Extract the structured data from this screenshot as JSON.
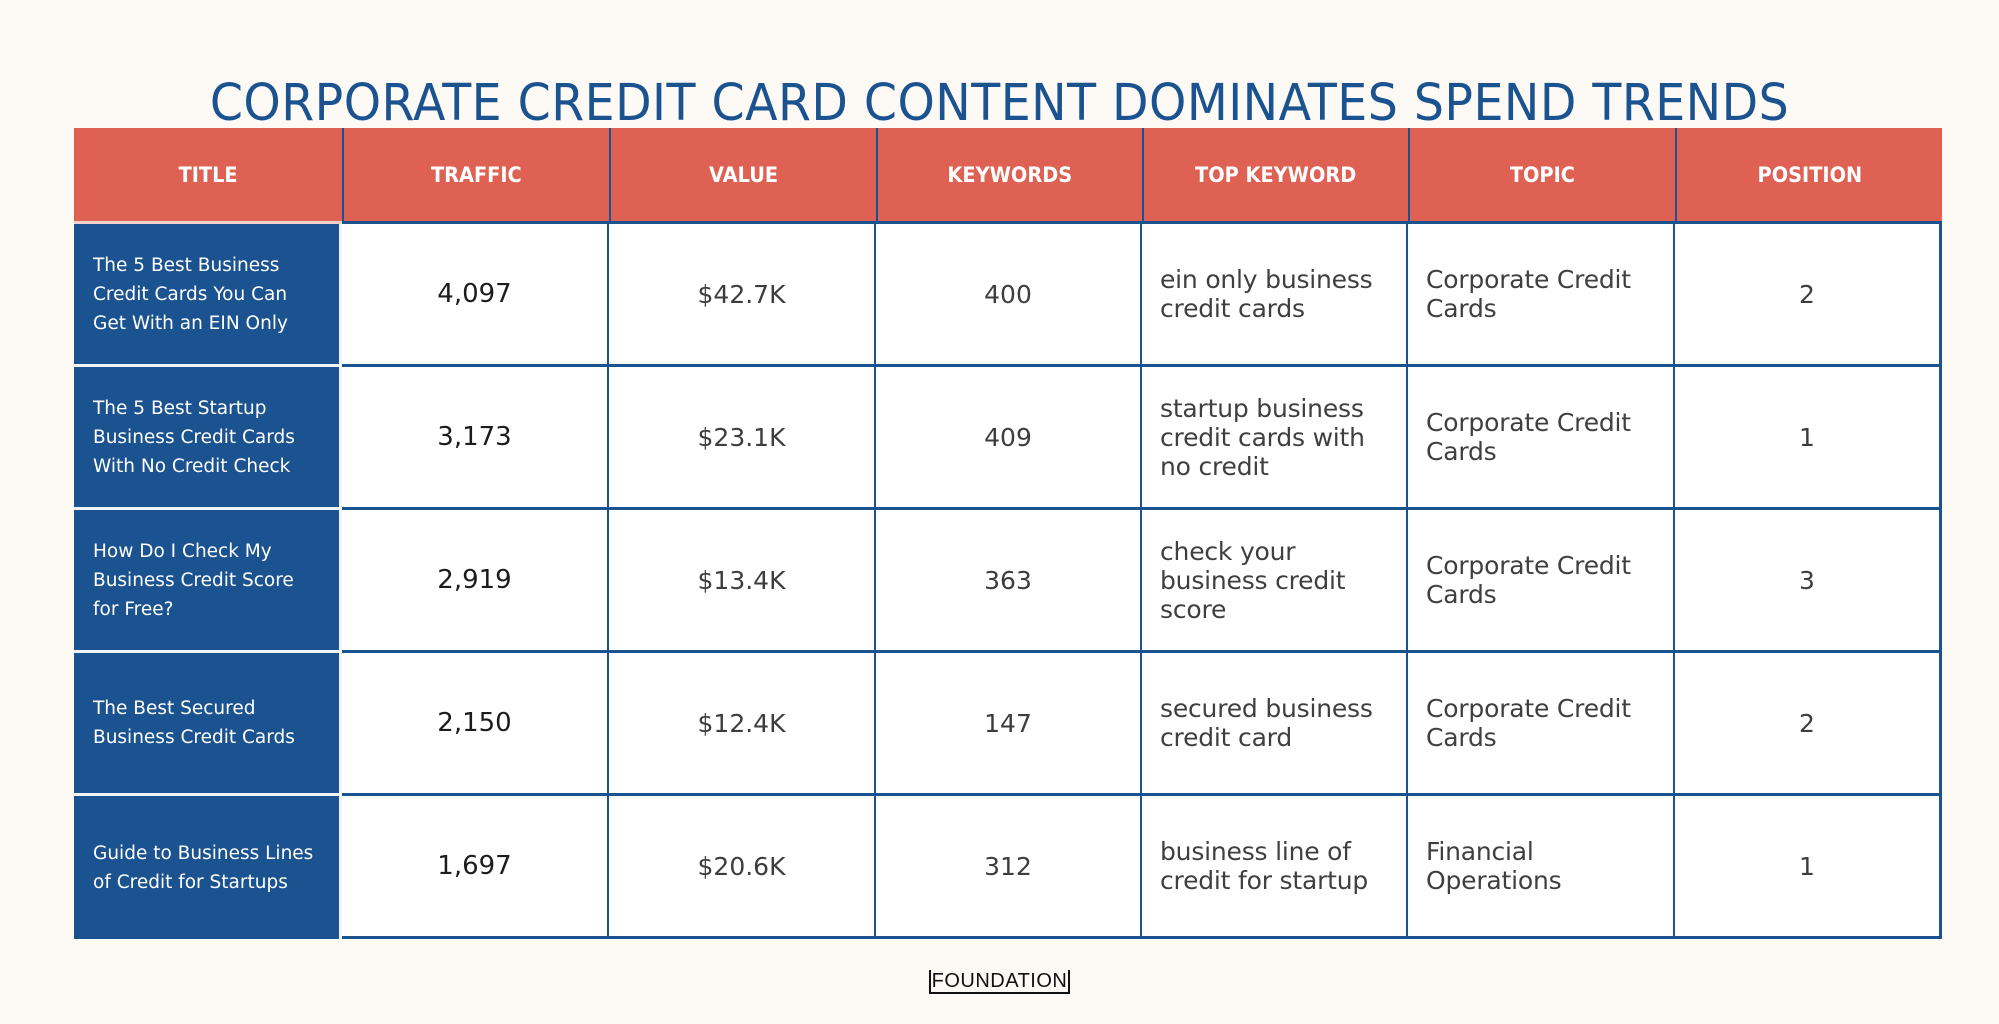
{
  "title": "CORPORATE CREDIT CARD CONTENT DOMINATES SPEND TRENDS",
  "colors": {
    "header_bg": "#de6154",
    "title_col_bg": "#1b5290",
    "border": "#1b5290",
    "page_bg": "#fdf9f4",
    "title_text": "#1b5290"
  },
  "table": {
    "columns": [
      "TITLE",
      "TRAFFIC",
      "VALUE",
      "KEYWORDS",
      "TOP KEYWORD",
      "TOPIC",
      "POSITION"
    ],
    "rows": [
      {
        "title": "The 5 Best Business Credit Cards You Can Get With an EIN Only",
        "traffic": "4,097",
        "value": "$42.7K",
        "keywords": "400",
        "top_keyword": "ein only business credit cards",
        "topic": "Corporate Credit Cards",
        "position": "2"
      },
      {
        "title": "The 5 Best Startup Business Credit Cards With No Credit Check",
        "traffic": "3,173",
        "value": "$23.1K",
        "keywords": "409",
        "top_keyword": "startup business credit cards with no credit",
        "topic": "Corporate Credit Cards",
        "position": "1"
      },
      {
        "title": "How Do I Check My Business Credit Score for Free?",
        "traffic": "2,919",
        "value": "$13.4K",
        "keywords": "363",
        "top_keyword": "check your business credit score",
        "topic": "Corporate Credit Cards",
        "position": "3"
      },
      {
        "title": "The Best Secured Business Credit Cards",
        "traffic": "2,150",
        "value": "$12.4K",
        "keywords": "147",
        "top_keyword": "secured business credit card",
        "topic": "Corporate Credit Cards",
        "position": "2"
      },
      {
        "title": "Guide to Business Lines of Credit for Startups",
        "traffic": "1,697",
        "value": "$20.6K",
        "keywords": "312",
        "top_keyword": "business line of credit for startup",
        "topic": "Financial Operations",
        "position": "1"
      }
    ]
  },
  "footer": {
    "logo": "FOUNDATION"
  },
  "chart_data": {
    "type": "table",
    "title": "CORPORATE CREDIT CARD CONTENT DOMINATES SPEND TRENDS",
    "columns": [
      "TITLE",
      "TRAFFIC",
      "VALUE",
      "KEYWORDS",
      "TOP KEYWORD",
      "TOPIC",
      "POSITION"
    ],
    "rows": [
      [
        "The 5 Best Business Credit Cards You Can Get With an EIN Only",
        4097,
        "$42.7K",
        400,
        "ein only business credit cards",
        "Corporate Credit Cards",
        2
      ],
      [
        "The 5 Best Startup Business Credit Cards With No Credit Check",
        3173,
        "$23.1K",
        409,
        "startup business credit cards with no credit",
        "Corporate Credit Cards",
        1
      ],
      [
        "How Do I Check My Business Credit Score for Free?",
        2919,
        "$13.4K",
        363,
        "check your business credit score",
        "Corporate Credit Cards",
        3
      ],
      [
        "The Best Secured Business Credit Cards",
        2150,
        "$12.4K",
        147,
        "secured business credit card",
        "Corporate Credit Cards",
        2
      ],
      [
        "Guide to Business Lines of Credit for Startups",
        1697,
        "$20.6K",
        312,
        "business line of credit for startup",
        "Financial Operations",
        1
      ]
    ],
    "source_logo": "FOUNDATION"
  }
}
